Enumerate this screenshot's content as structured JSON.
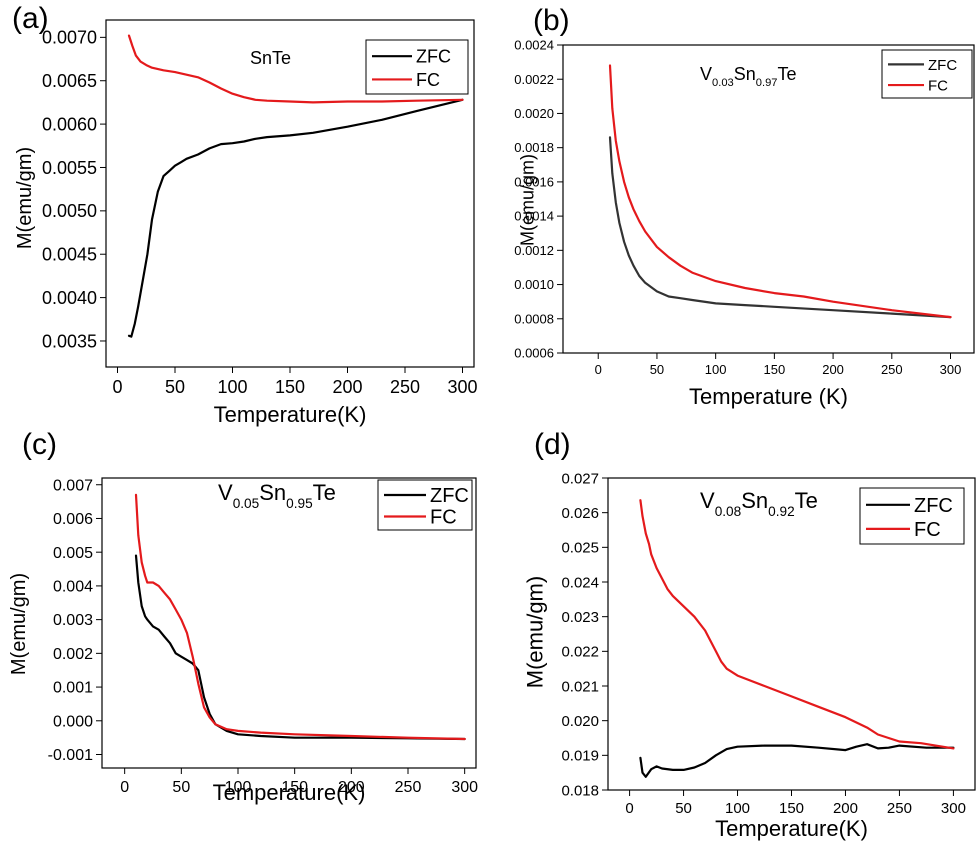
{
  "chart_data": [
    {
      "type": "line",
      "panel_label": "(a)",
      "annotation": {
        "base": "SnTe",
        "parts": []
      },
      "xlabel": "Temperature(K)",
      "ylabel": "M(emu/gm)",
      "xlim": [
        -10,
        310
      ],
      "ylim": [
        0.0032,
        0.0072
      ],
      "xticks": [
        0,
        50,
        100,
        150,
        200,
        250,
        300
      ],
      "xticklabels": [
        "0",
        "50",
        "100",
        "150",
        "200",
        "250",
        "300"
      ],
      "yticks": [
        0.0035,
        0.004,
        0.0045,
        0.005,
        0.0055,
        0.006,
        0.0065,
        0.007
      ],
      "yticklabels": [
        "0.0035",
        "0.0040",
        "0.0045",
        "0.0050",
        "0.0055",
        "0.0060",
        "0.0065",
        "0.0070"
      ],
      "legend": "top-right",
      "series": [
        {
          "name": "ZFC",
          "color": "#000000",
          "x": [
            10,
            12,
            15,
            18,
            22,
            26,
            30,
            35,
            40,
            45,
            50,
            55,
            60,
            70,
            80,
            90,
            100,
            110,
            120,
            130,
            150,
            170,
            200,
            230,
            260,
            300
          ],
          "y": [
            0.00356,
            0.00355,
            0.0037,
            0.0039,
            0.0042,
            0.0045,
            0.0049,
            0.00522,
            0.0054,
            0.00546,
            0.00552,
            0.00556,
            0.0056,
            0.00565,
            0.00572,
            0.00577,
            0.00578,
            0.0058,
            0.00583,
            0.00585,
            0.00587,
            0.0059,
            0.00597,
            0.00605,
            0.00615,
            0.00628
          ]
        },
        {
          "name": "FC",
          "color": "#e41a1c",
          "x": [
            10,
            13,
            16,
            20,
            25,
            30,
            40,
            50,
            60,
            70,
            80,
            90,
            100,
            110,
            120,
            130,
            150,
            170,
            200,
            230,
            260,
            300
          ],
          "y": [
            0.00702,
            0.0069,
            0.00679,
            0.00672,
            0.00668,
            0.00665,
            0.00662,
            0.0066,
            0.00657,
            0.00654,
            0.00648,
            0.00641,
            0.00635,
            0.00631,
            0.00628,
            0.00627,
            0.00626,
            0.00625,
            0.00626,
            0.00626,
            0.00627,
            0.00628
          ]
        }
      ]
    },
    {
      "type": "line",
      "panel_label": "(b)",
      "annotation": {
        "base": "",
        "parts": [
          [
            "V",
            ""
          ],
          [
            "0.03",
            "sub"
          ],
          [
            "Sn",
            ""
          ],
          [
            "0.97",
            "sub"
          ],
          [
            "Te",
            ""
          ]
        ]
      },
      "xlabel": "Temperature (K)",
      "ylabel": "M(emu/gm)",
      "xlim": [
        -30,
        320
      ],
      "ylim": [
        0.0006,
        0.0024
      ],
      "xticks": [
        0,
        50,
        100,
        150,
        200,
        250,
        300
      ],
      "xticklabels": [
        "0",
        "50",
        "100",
        "150",
        "200",
        "250",
        "300"
      ],
      "yticks": [
        0.0006,
        0.0008,
        0.001,
        0.0012,
        0.0014,
        0.0016,
        0.0018,
        0.002,
        0.0022,
        0.0024
      ],
      "yticklabels": [
        "0.0006",
        "0.0008",
        "0.0010",
        "0.0012",
        "0.0014",
        "0.0016",
        "0.0018",
        "0.0020",
        "0.0022",
        "0.0024"
      ],
      "legend": "top-right",
      "series": [
        {
          "name": "ZFC",
          "color": "#333333",
          "x": [
            10,
            12,
            15,
            18,
            22,
            26,
            30,
            35,
            40,
            50,
            60,
            70,
            80,
            100,
            125,
            150,
            200,
            250,
            300
          ],
          "y": [
            0.00186,
            0.00165,
            0.00148,
            0.00136,
            0.00125,
            0.00117,
            0.00111,
            0.00105,
            0.00101,
            0.00096,
            0.00093,
            0.00092,
            0.00091,
            0.00089,
            0.00088,
            0.00087,
            0.00085,
            0.00083,
            0.00081
          ]
        },
        {
          "name": "FC",
          "color": "#e41a1c",
          "x": [
            10,
            12,
            15,
            18,
            22,
            26,
            30,
            35,
            40,
            50,
            60,
            70,
            80,
            100,
            125,
            150,
            175,
            200,
            250,
            300
          ],
          "y": [
            0.00228,
            0.00203,
            0.00184,
            0.00172,
            0.0016,
            0.00151,
            0.00144,
            0.00137,
            0.00131,
            0.00122,
            0.00116,
            0.00111,
            0.00107,
            0.00102,
            0.00098,
            0.00095,
            0.00093,
            0.0009,
            0.00085,
            0.00081
          ]
        }
      ]
    },
    {
      "type": "line",
      "panel_label": "(c)",
      "annotation": {
        "base": "",
        "parts": [
          [
            "V",
            ""
          ],
          [
            "0.05",
            "sub"
          ],
          [
            "Sn",
            ""
          ],
          [
            "0.95",
            "sub"
          ],
          [
            "Te",
            ""
          ]
        ]
      },
      "xlabel": "Temperature(K)",
      "ylabel": "M(emu/gm)",
      "xlim": [
        -20,
        310
      ],
      "ylim": [
        -0.0014,
        0.0072
      ],
      "xticks": [
        0,
        50,
        100,
        150,
        200,
        250,
        300
      ],
      "xticklabels": [
        "0",
        "50",
        "100",
        "150",
        "200",
        "250",
        "300"
      ],
      "yticks": [
        -0.001,
        0.0,
        0.001,
        0.002,
        0.003,
        0.004,
        0.005,
        0.006,
        0.007
      ],
      "yticklabels": [
        "-0.001",
        "0.000",
        "0.001",
        "0.002",
        "0.003",
        "0.004",
        "0.005",
        "0.006",
        "0.007"
      ],
      "legend": "top-right",
      "series": [
        {
          "name": "ZFC",
          "color": "#000000",
          "x": [
            10,
            12,
            15,
            18,
            20,
            25,
            30,
            35,
            40,
            45,
            50,
            55,
            60,
            65,
            70,
            75,
            80,
            90,
            100,
            120,
            150,
            200,
            250,
            300
          ],
          "y": [
            0.0049,
            0.0041,
            0.0034,
            0.0031,
            0.003,
            0.0028,
            0.0027,
            0.0025,
            0.0023,
            0.002,
            0.0019,
            0.0018,
            0.0017,
            0.0015,
            0.0007,
            0.0002,
            -0.0001,
            -0.0003,
            -0.0004,
            -0.00045,
            -0.0005,
            -0.0005,
            -0.00052,
            -0.00054
          ]
        },
        {
          "name": "FC",
          "color": "#e41a1c",
          "x": [
            10,
            12,
            15,
            18,
            20,
            25,
            30,
            35,
            40,
            45,
            50,
            55,
            60,
            65,
            70,
            75,
            80,
            90,
            100,
            120,
            150,
            200,
            250,
            300
          ],
          "y": [
            0.0067,
            0.0055,
            0.0047,
            0.0043,
            0.0041,
            0.0041,
            0.004,
            0.0038,
            0.0036,
            0.0033,
            0.003,
            0.0026,
            0.0019,
            0.0011,
            0.0004,
            0.0001,
            -0.0001,
            -0.00025,
            -0.0003,
            -0.00035,
            -0.0004,
            -0.00045,
            -0.0005,
            -0.00054
          ]
        }
      ]
    },
    {
      "type": "line",
      "panel_label": "(d)",
      "annotation": {
        "base": "",
        "parts": [
          [
            "V",
            ""
          ],
          [
            "0.08",
            "sub"
          ],
          [
            "Sn",
            ""
          ],
          [
            "0.92",
            "sub"
          ],
          [
            "Te",
            ""
          ]
        ]
      },
      "xlabel": "Temperature(K)",
      "ylabel": "M(emu/gm)",
      "xlim": [
        -20,
        320
      ],
      "ylim": [
        0.018,
        0.027
      ],
      "xticks": [
        0,
        50,
        100,
        150,
        200,
        250,
        300
      ],
      "xticklabels": [
        "0",
        "50",
        "100",
        "150",
        "200",
        "250",
        "300"
      ],
      "yticks": [
        0.018,
        0.019,
        0.02,
        0.021,
        0.022,
        0.023,
        0.024,
        0.025,
        0.026,
        0.027
      ],
      "yticklabels": [
        "0.018",
        "0.019",
        "0.020",
        "0.021",
        "0.022",
        "0.023",
        "0.024",
        "0.025",
        "0.026",
        "0.027"
      ],
      "legend": "top-right",
      "series": [
        {
          "name": "ZFC",
          "color": "#000000",
          "x": [
            10,
            12,
            15,
            20,
            25,
            30,
            40,
            50,
            60,
            70,
            80,
            90,
            100,
            125,
            150,
            175,
            200,
            210,
            220,
            230,
            240,
            250,
            275,
            300
          ],
          "y": [
            0.01893,
            0.0185,
            0.01838,
            0.0186,
            0.01868,
            0.01862,
            0.01858,
            0.01858,
            0.01865,
            0.01878,
            0.019,
            0.01918,
            0.01925,
            0.01928,
            0.01928,
            0.01922,
            0.01915,
            0.01925,
            0.01932,
            0.0192,
            0.01922,
            0.01928,
            0.01922,
            0.01922
          ]
        },
        {
          "name": "FC",
          "color": "#e41a1c",
          "x": [
            10,
            12,
            15,
            18,
            20,
            25,
            30,
            35,
            40,
            50,
            60,
            70,
            80,
            85,
            90,
            100,
            125,
            150,
            175,
            200,
            220,
            230,
            240,
            250,
            270,
            300
          ],
          "y": [
            0.02636,
            0.0259,
            0.0254,
            0.0251,
            0.0248,
            0.0244,
            0.0241,
            0.0238,
            0.0236,
            0.0233,
            0.023,
            0.0226,
            0.022,
            0.0217,
            0.0215,
            0.0213,
            0.021,
            0.0207,
            0.0204,
            0.0201,
            0.0198,
            0.0196,
            0.0195,
            0.0194,
            0.01935,
            0.0192
          ]
        }
      ]
    }
  ]
}
